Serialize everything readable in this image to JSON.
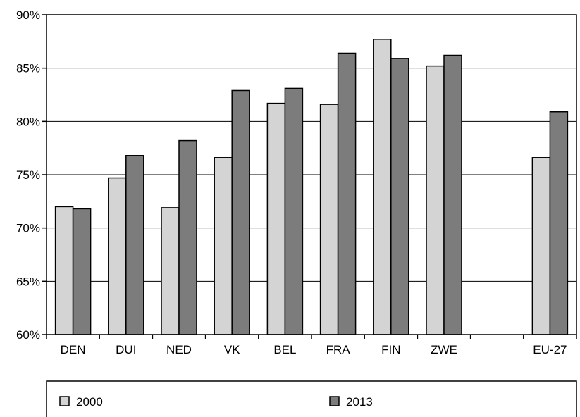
{
  "chart_data": {
    "type": "bar",
    "categories": [
      "DEN",
      "DUI",
      "NED",
      "VK",
      "BEL",
      "FRA",
      "FIN",
      "ZWE",
      "",
      "EU-27"
    ],
    "series": [
      {
        "name": "2000",
        "values": [
          72.0,
          74.7,
          71.9,
          76.6,
          81.7,
          81.6,
          87.7,
          85.2,
          null,
          76.6
        ],
        "color": "#d4d4d4"
      },
      {
        "name": "2013",
        "values": [
          71.8,
          76.8,
          78.2,
          82.9,
          83.1,
          86.4,
          85.9,
          86.2,
          null,
          80.9
        ],
        "color": "#7c7c7c"
      }
    ],
    "yticks": [
      "60%",
      "65%",
      "70%",
      "75%",
      "80%",
      "85%",
      "90%"
    ],
    "ylim": [
      60,
      90
    ],
    "grid": true,
    "legend_position": "bottom"
  }
}
